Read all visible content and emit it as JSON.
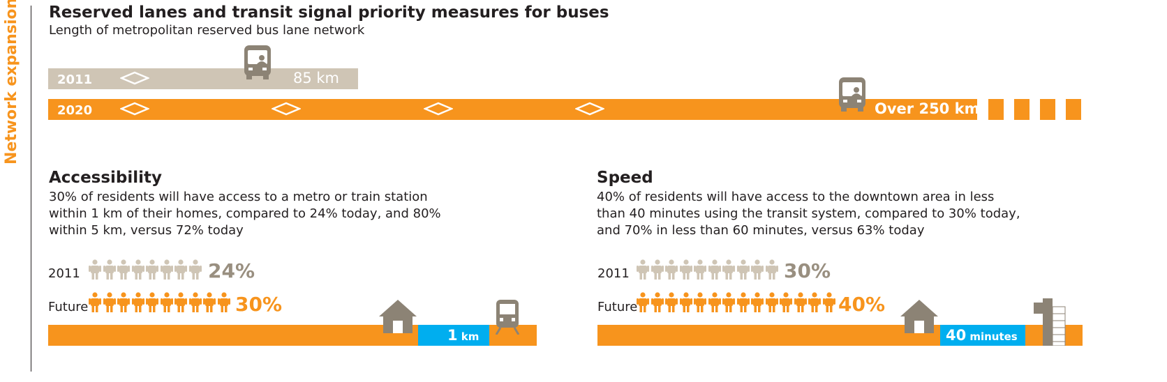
{
  "side_title": "Network expansion",
  "lanes": {
    "title": "Reserved lanes and transit signal priority measures for buses",
    "subtitle": "Length of metropolitan reserved bus lane network",
    "row_2011": {
      "year": "2011",
      "value": "85 km"
    },
    "row_2020": {
      "year": "2020",
      "value": "Over 250 km"
    }
  },
  "accessibility": {
    "title": "Accessibility",
    "text": [
      "30% of residents will have access to a metro or train station",
      "within 1 km of their homes, compared to 24% today, and 80%",
      "within 5 km, versus 72% today"
    ],
    "row_2011": {
      "label": "2011",
      "percent": "24%",
      "icons": 8
    },
    "row_future": {
      "label": "Future",
      "percent": "30%",
      "icons": 10
    },
    "distance": {
      "value": "1",
      "unit": "km"
    }
  },
  "speed": {
    "title": "Speed",
    "text": [
      "40% of residents will have access to the downtown area in less",
      "than 40 minutes using the transit system, compared to 30% today,",
      "and 70% in less than 60 minutes, versus 63% today"
    ],
    "row_2011": {
      "label": "2011",
      "percent": "30%",
      "icons": 10
    },
    "row_future": {
      "label": "Future",
      "percent": "40%",
      "icons": 14
    },
    "duration": {
      "value": "40",
      "unit": "minutes"
    }
  },
  "colors": {
    "orange": "#f7941d",
    "beige": "#cfc5b5",
    "grey_text": "#998f80",
    "blue": "#00aeef",
    "icon_grey": "#8c8375"
  },
  "icons": [
    "bus-icon",
    "diamond-icon",
    "person-icon",
    "house-icon",
    "train-icon",
    "building-icon"
  ]
}
